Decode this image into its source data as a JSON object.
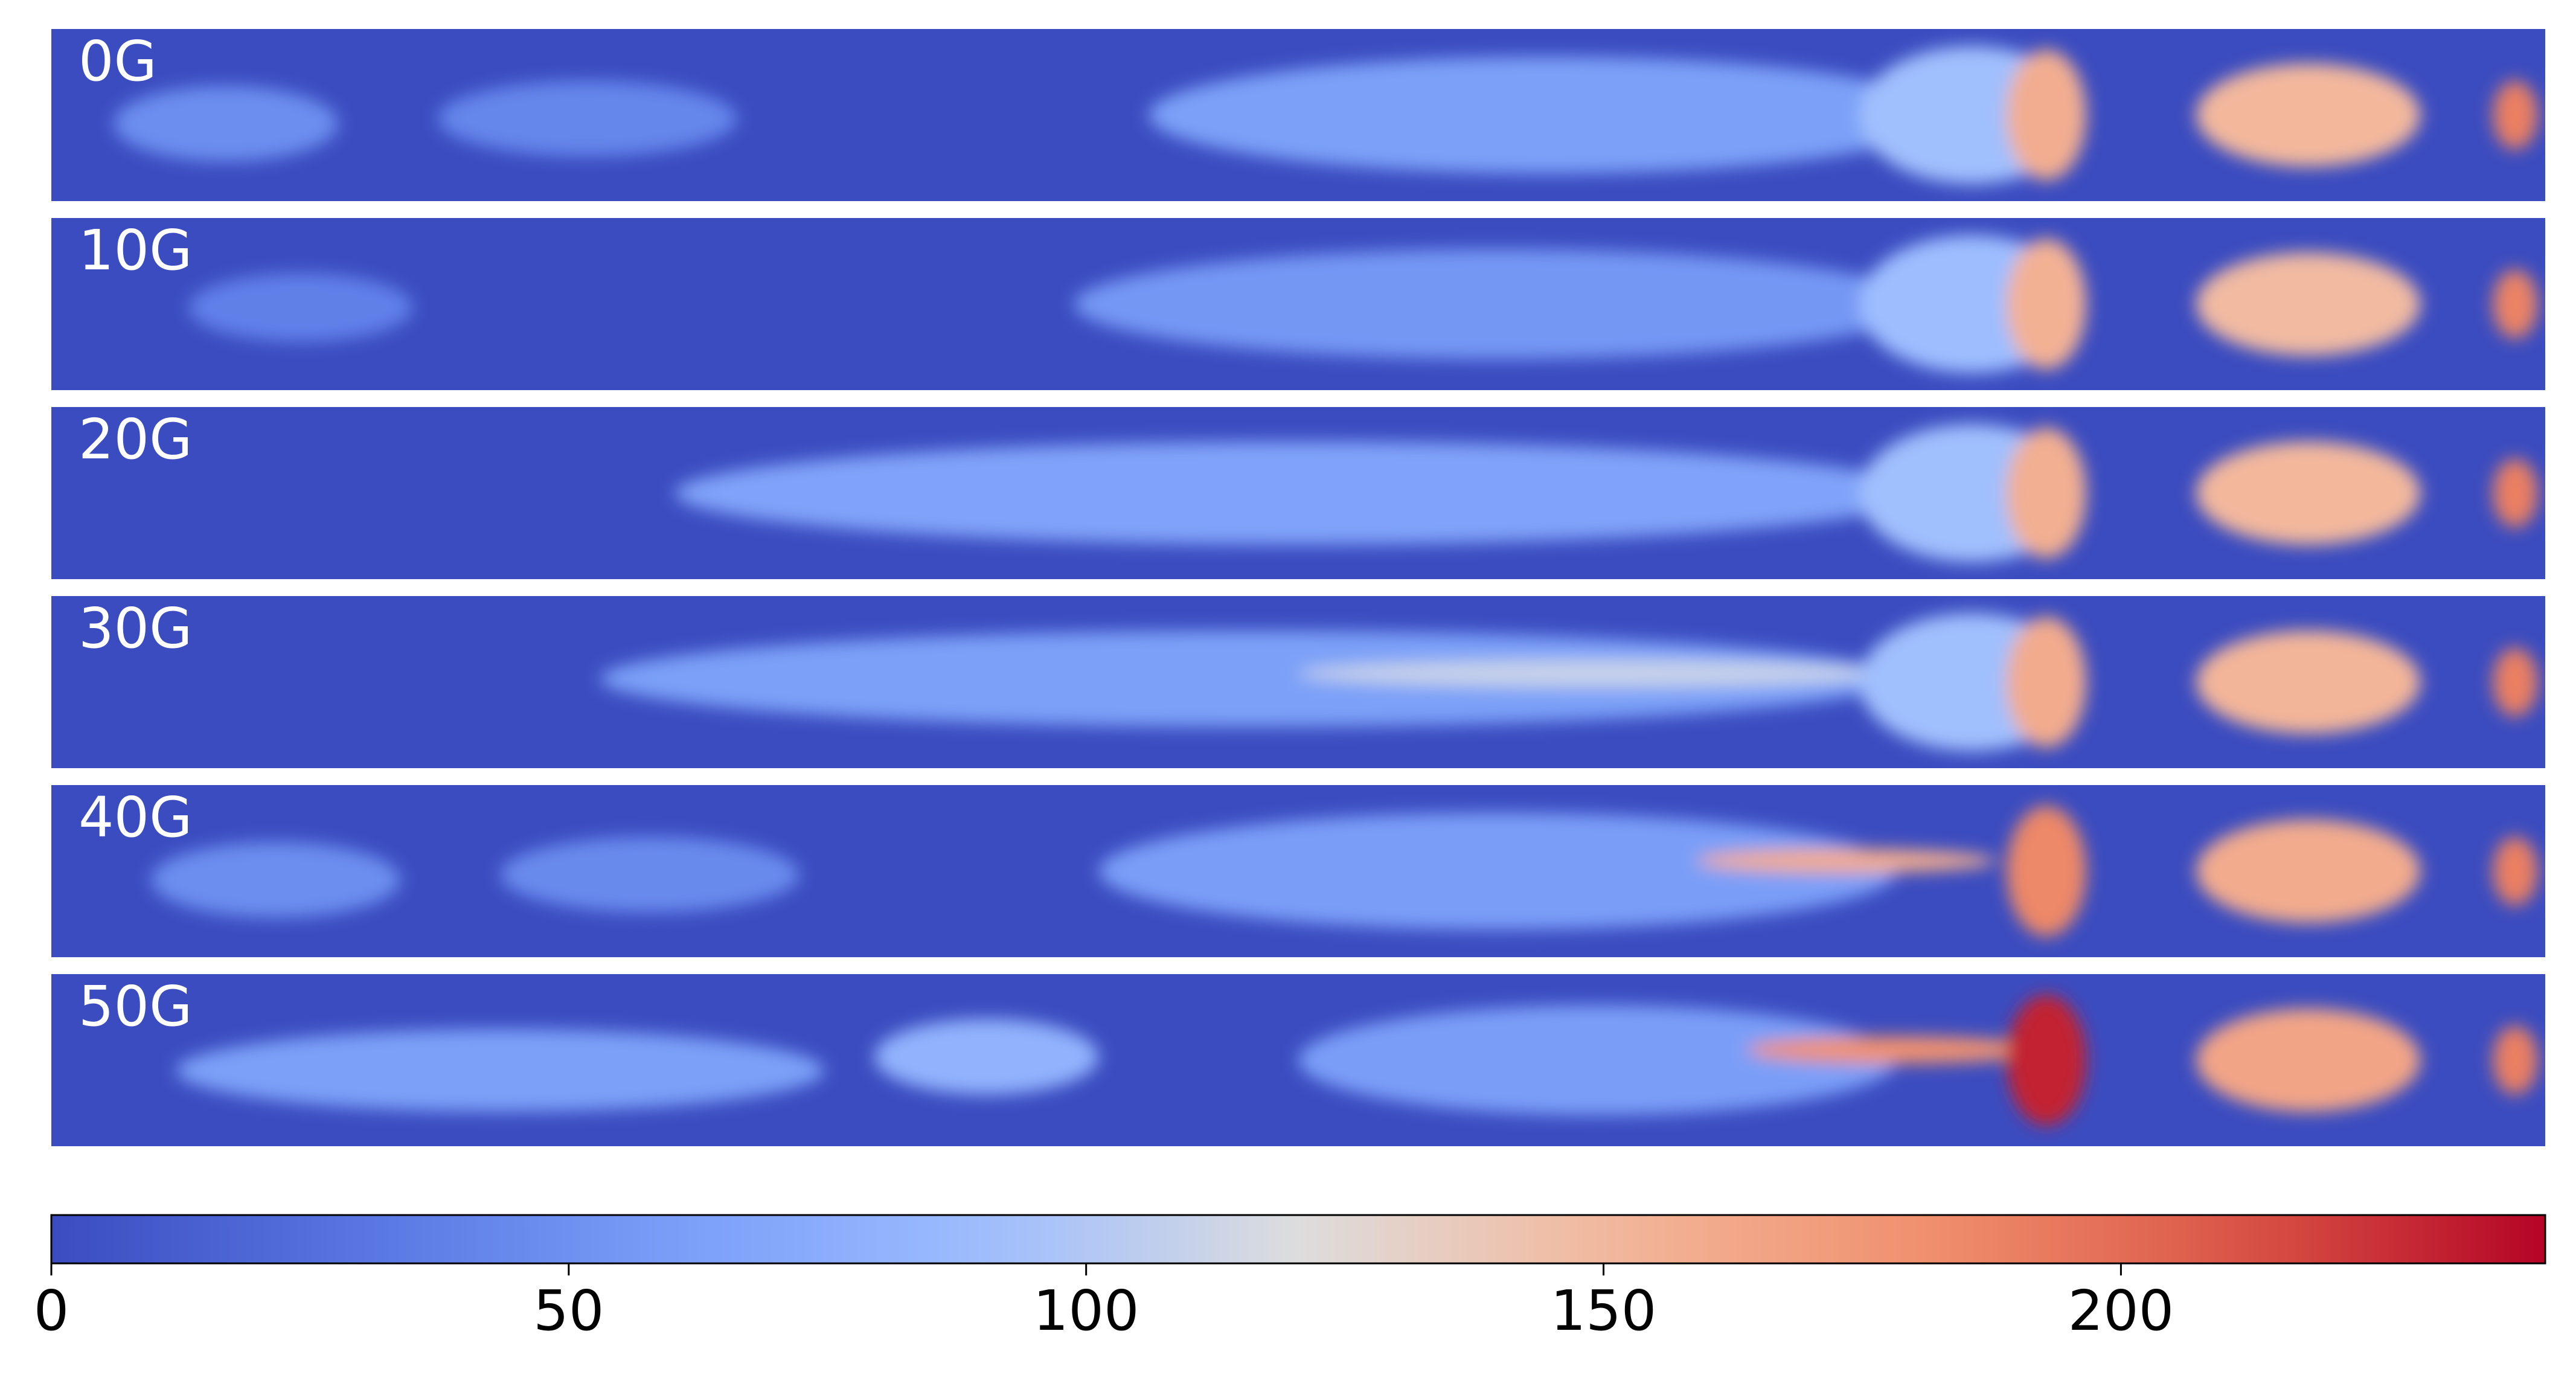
{
  "chart_data": {
    "type": "heatmap",
    "colormap": "coolwarm",
    "panels": [
      {
        "label": "0G",
        "blobs": [
          {
            "x": 0.07,
            "y": 0.55,
            "rx": 0.045,
            "ry": 0.22,
            "value": 48
          },
          {
            "x": 0.215,
            "y": 0.52,
            "rx": 0.06,
            "ry": 0.22,
            "value": 42
          },
          {
            "x": 0.6,
            "y": 0.5,
            "rx": 0.16,
            "ry": 0.34,
            "value": 62
          },
          {
            "x": 0.77,
            "y": 0.5,
            "rx": 0.045,
            "ry": 0.4,
            "value": 92
          },
          {
            "x": 0.8,
            "y": 0.5,
            "rx": 0.016,
            "ry": 0.38,
            "value": 158
          },
          {
            "x": 0.905,
            "y": 0.5,
            "rx": 0.045,
            "ry": 0.3,
            "value": 150
          },
          {
            "x": 0.988,
            "y": 0.5,
            "rx": 0.009,
            "ry": 0.2,
            "value": 190
          }
        ]
      },
      {
        "label": "10G",
        "blobs": [
          {
            "x": 0.1,
            "y": 0.52,
            "rx": 0.045,
            "ry": 0.2,
            "value": 38
          },
          {
            "x": 0.58,
            "y": 0.5,
            "rx": 0.17,
            "ry": 0.32,
            "value": 55
          },
          {
            "x": 0.77,
            "y": 0.5,
            "rx": 0.045,
            "ry": 0.4,
            "value": 90
          },
          {
            "x": 0.8,
            "y": 0.5,
            "rx": 0.016,
            "ry": 0.38,
            "value": 155
          },
          {
            "x": 0.905,
            "y": 0.5,
            "rx": 0.045,
            "ry": 0.3,
            "value": 148
          },
          {
            "x": 0.988,
            "y": 0.5,
            "rx": 0.009,
            "ry": 0.2,
            "value": 188
          }
        ]
      },
      {
        "label": "20G",
        "blobs": [
          {
            "x": 0.5,
            "y": 0.5,
            "rx": 0.25,
            "ry": 0.3,
            "value": 65
          },
          {
            "x": 0.77,
            "y": 0.5,
            "rx": 0.045,
            "ry": 0.4,
            "value": 92
          },
          {
            "x": 0.8,
            "y": 0.5,
            "rx": 0.016,
            "ry": 0.38,
            "value": 157
          },
          {
            "x": 0.905,
            "y": 0.5,
            "rx": 0.045,
            "ry": 0.3,
            "value": 150
          },
          {
            "x": 0.988,
            "y": 0.5,
            "rx": 0.009,
            "ry": 0.2,
            "value": 190
          }
        ]
      },
      {
        "label": "30G",
        "blobs": [
          {
            "x": 0.48,
            "y": 0.48,
            "rx": 0.26,
            "ry": 0.28,
            "value": 62
          },
          {
            "x": 0.62,
            "y": 0.45,
            "rx": 0.12,
            "ry": 0.08,
            "value": 110
          },
          {
            "x": 0.77,
            "y": 0.5,
            "rx": 0.045,
            "ry": 0.4,
            "value": 92
          },
          {
            "x": 0.8,
            "y": 0.5,
            "rx": 0.016,
            "ry": 0.38,
            "value": 160
          },
          {
            "x": 0.905,
            "y": 0.5,
            "rx": 0.045,
            "ry": 0.3,
            "value": 152
          },
          {
            "x": 0.988,
            "y": 0.5,
            "rx": 0.009,
            "ry": 0.2,
            "value": 190
          }
        ]
      },
      {
        "label": "40G",
        "blobs": [
          {
            "x": 0.09,
            "y": 0.55,
            "rx": 0.05,
            "ry": 0.22,
            "value": 48
          },
          {
            "x": 0.24,
            "y": 0.52,
            "rx": 0.06,
            "ry": 0.22,
            "value": 45
          },
          {
            "x": 0.58,
            "y": 0.5,
            "rx": 0.16,
            "ry": 0.34,
            "value": 60
          },
          {
            "x": 0.72,
            "y": 0.44,
            "rx": 0.06,
            "ry": 0.07,
            "value": 160
          },
          {
            "x": 0.8,
            "y": 0.5,
            "rx": 0.016,
            "ry": 0.38,
            "value": 185
          },
          {
            "x": 0.905,
            "y": 0.5,
            "rx": 0.045,
            "ry": 0.3,
            "value": 160
          },
          {
            "x": 0.988,
            "y": 0.5,
            "rx": 0.009,
            "ry": 0.2,
            "value": 190
          }
        ]
      },
      {
        "label": "50G",
        "blobs": [
          {
            "x": 0.18,
            "y": 0.56,
            "rx": 0.13,
            "ry": 0.24,
            "value": 62
          },
          {
            "x": 0.375,
            "y": 0.48,
            "rx": 0.045,
            "ry": 0.22,
            "value": 80
          },
          {
            "x": 0.62,
            "y": 0.5,
            "rx": 0.12,
            "ry": 0.32,
            "value": 60
          },
          {
            "x": 0.74,
            "y": 0.44,
            "rx": 0.06,
            "ry": 0.08,
            "value": 180
          },
          {
            "x": 0.8,
            "y": 0.5,
            "rx": 0.016,
            "ry": 0.38,
            "value": 230
          },
          {
            "x": 0.905,
            "y": 0.5,
            "rx": 0.045,
            "ry": 0.3,
            "value": 165
          },
          {
            "x": 0.988,
            "y": 0.5,
            "rx": 0.009,
            "ry": 0.2,
            "value": 190
          }
        ]
      }
    ],
    "colorbar": {
      "min": 0,
      "max": 241,
      "ticks": [
        0,
        50,
        100,
        150,
        200
      ],
      "tick_labels": [
        "0",
        "50",
        "100",
        "150",
        "200"
      ]
    }
  }
}
